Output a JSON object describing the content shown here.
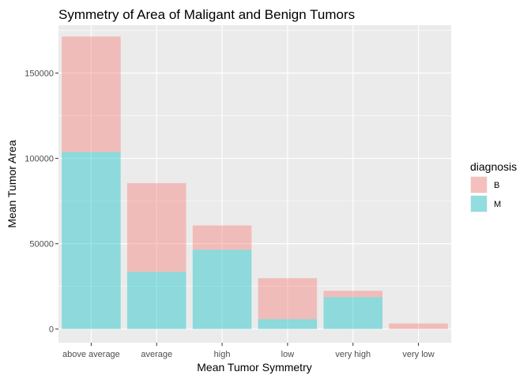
{
  "chart_data": {
    "type": "bar",
    "stacked": true,
    "title": "Symmetry of Area of Maligant and Benign Tumors",
    "xlabel": "Mean Tumor Symmetry",
    "ylabel": "Mean Tumor Area",
    "categories": [
      "above average",
      "average",
      "high",
      "low",
      "very high",
      "very low"
    ],
    "ylim": [
      -8000,
      178000
    ],
    "yticks": [
      0,
      50000,
      100000,
      150000
    ],
    "grid": true,
    "legend": {
      "title": "diagnosis",
      "placement": "right"
    },
    "series": [
      {
        "name": "B",
        "color": "#f8766d",
        "values": [
          67600,
          52000,
          14200,
          24000,
          3700,
          3300
        ]
      },
      {
        "name": "M",
        "color": "#00bfc4",
        "values": [
          103800,
          33500,
          46500,
          5800,
          18700,
          0
        ]
      }
    ],
    "bar_opacity": 0.4,
    "panel_background": "#ebebeb"
  }
}
